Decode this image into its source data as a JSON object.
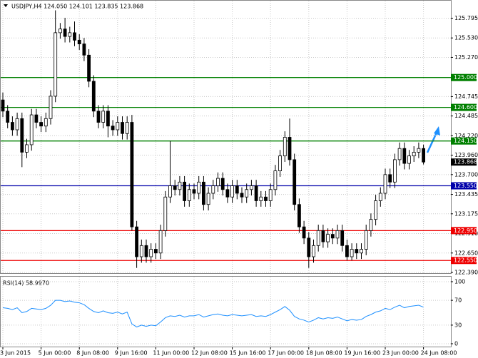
{
  "chart_data": {
    "type": "candlestick",
    "title": "USDJPY,H4  124.050 124.101 123.835 123.868",
    "categories": [
      "3 Jun 2015",
      null,
      null,
      null,
      null,
      null,
      null,
      null,
      "5 Jun 00:00",
      null,
      null,
      null,
      null,
      null,
      null,
      null,
      "8 Jun 08:00",
      null,
      null,
      null,
      null,
      null,
      null,
      null,
      "9 Jun 16:00",
      null,
      null,
      null,
      null,
      null,
      null,
      null,
      "11 Jun 00:00",
      null,
      null,
      null,
      null,
      null,
      null,
      null,
      "12 Jun 08:00",
      null,
      null,
      null,
      null,
      null,
      null,
      null,
      "15 Jun 16:00",
      null,
      null,
      null,
      null,
      null,
      null,
      null,
      "17 Jun 00:00",
      null,
      null,
      null,
      null,
      null,
      null,
      null,
      "18 Jun 08:00",
      null,
      null,
      null,
      null,
      null,
      null,
      null,
      "19 Jun 16:00",
      null,
      null,
      null,
      null,
      null,
      null,
      null,
      "23 Jun 00:00",
      null,
      null,
      null,
      null,
      null,
      null,
      null,
      "24 Jun 08:00"
    ],
    "open": [
      124.7,
      124.55,
      124.4,
      124.3,
      124.45,
      124.0,
      124.1,
      124.5,
      124.4,
      124.35,
      124.45,
      124.75,
      125.6,
      125.65,
      125.55,
      125.6,
      125.5,
      125.45,
      125.3,
      124.95,
      124.55,
      124.4,
      124.55,
      124.35,
      124.3,
      124.4,
      124.25,
      124.4,
      123.0,
      122.6,
      122.75,
      122.6,
      122.7,
      122.65,
      122.95,
      123.4,
      123.55,
      123.5,
      123.6,
      123.35,
      123.5,
      123.45,
      123.6,
      123.3,
      123.45,
      123.55,
      123.65,
      123.5,
      123.4,
      123.55,
      123.45,
      123.4,
      123.5,
      123.55,
      123.35,
      123.4,
      123.35,
      123.5,
      123.75,
      123.95,
      124.2,
      123.9,
      123.3,
      123.0,
      122.85,
      122.6,
      122.75,
      122.95,
      122.8,
      122.9,
      122.85,
      122.95,
      122.75,
      122.6,
      122.7,
      122.65,
      122.7,
      122.95,
      123.1,
      123.35,
      123.45,
      123.7,
      123.6,
      123.9,
      124.05,
      123.85,
      123.95,
      124.0,
      124.05
    ],
    "high": [
      124.8,
      124.63,
      124.48,
      124.53,
      124.53,
      124.18,
      124.58,
      124.58,
      124.48,
      124.53,
      124.83,
      125.9,
      125.73,
      125.8,
      125.68,
      125.75,
      125.58,
      125.53,
      125.38,
      125.03,
      124.63,
      124.63,
      124.63,
      124.43,
      124.48,
      124.48,
      124.48,
      124.5,
      123.08,
      122.83,
      122.83,
      122.78,
      122.78,
      123.03,
      123.48,
      124.15,
      123.63,
      123.68,
      123.68,
      123.58,
      123.58,
      123.68,
      123.68,
      123.53,
      123.63,
      123.73,
      123.73,
      123.58,
      123.63,
      123.63,
      123.53,
      123.58,
      123.63,
      123.63,
      123.48,
      123.48,
      123.58,
      123.83,
      124.03,
      124.28,
      124.45,
      123.98,
      123.38,
      123.08,
      122.93,
      122.83,
      123.03,
      123.03,
      122.98,
      122.98,
      123.03,
      123.03,
      122.83,
      122.78,
      122.78,
      122.78,
      123.03,
      123.18,
      123.43,
      123.53,
      123.78,
      123.78,
      123.98,
      124.13,
      124.13,
      124.03,
      124.08,
      124.13,
      124.101
    ],
    "low": [
      124.47,
      124.32,
      124.22,
      124.22,
      123.8,
      123.92,
      124.02,
      124.32,
      124.27,
      124.27,
      124.37,
      124.67,
      125.52,
      125.47,
      125.47,
      125.42,
      125.37,
      125.22,
      124.87,
      124.47,
      124.32,
      124.32,
      124.2,
      124.22,
      124.22,
      124.17,
      124.17,
      122.95,
      122.45,
      122.52,
      122.52,
      122.52,
      122.57,
      122.57,
      122.87,
      123.32,
      123.42,
      123.42,
      123.27,
      123.27,
      123.37,
      123.37,
      123.22,
      123.22,
      123.37,
      123.47,
      123.42,
      123.32,
      123.32,
      123.37,
      123.32,
      123.32,
      123.42,
      123.27,
      123.27,
      123.27,
      123.27,
      123.42,
      123.67,
      123.87,
      123.82,
      123.22,
      122.92,
      122.77,
      122.45,
      122.52,
      122.67,
      122.72,
      122.72,
      122.77,
      122.77,
      122.67,
      122.55,
      122.55,
      122.57,
      122.57,
      122.62,
      122.87,
      123.02,
      123.27,
      123.37,
      123.52,
      123.52,
      123.82,
      123.77,
      123.77,
      123.87,
      123.92,
      123.835
    ],
    "close": [
      124.55,
      124.4,
      124.3,
      124.45,
      124.0,
      124.1,
      124.5,
      124.4,
      124.35,
      124.45,
      124.75,
      125.6,
      125.65,
      125.55,
      125.6,
      125.5,
      125.45,
      125.3,
      124.95,
      124.55,
      124.4,
      124.55,
      124.35,
      124.3,
      124.4,
      124.25,
      124.4,
      123.0,
      122.6,
      122.75,
      122.6,
      122.7,
      122.65,
      122.95,
      123.4,
      123.55,
      123.5,
      123.6,
      123.35,
      123.5,
      123.45,
      123.6,
      123.3,
      123.45,
      123.55,
      123.65,
      123.5,
      123.4,
      123.55,
      123.45,
      123.4,
      123.5,
      123.55,
      123.35,
      123.4,
      123.35,
      123.5,
      123.75,
      123.95,
      124.2,
      123.9,
      123.3,
      123.0,
      122.85,
      122.6,
      122.75,
      122.95,
      122.8,
      122.9,
      122.85,
      122.95,
      122.75,
      122.6,
      122.7,
      122.65,
      122.7,
      122.95,
      123.1,
      123.35,
      123.45,
      123.7,
      123.6,
      123.9,
      124.05,
      123.85,
      123.95,
      124.0,
      124.05,
      123.868
    ],
    "ylim": [
      122.39,
      126.0
    ],
    "yticks": [
      {
        "value": 125.795,
        "label": "125.795"
      },
      {
        "value": 125.53,
        "label": "125.530"
      },
      {
        "value": 125.27,
        "label": "125.270"
      },
      {
        "value": 124.745,
        "label": "124.745"
      },
      {
        "value": 124.485,
        "label": "124.485"
      },
      {
        "value": 124.22,
        "label": "124.220"
      },
      {
        "value": 123.96,
        "label": "123.960"
      },
      {
        "value": 123.7,
        "label": "123.700"
      },
      {
        "value": 123.435,
        "label": "123.435"
      },
      {
        "value": 123.175,
        "label": "123.175"
      },
      {
        "value": 122.91,
        "label": "122.910"
      },
      {
        "value": 122.65,
        "label": "122.650"
      },
      {
        "value": 122.39,
        "label": "122.390"
      }
    ],
    "grid": true,
    "levels": [
      {
        "value": 125.0,
        "label": "125.000",
        "color": "#008000"
      },
      {
        "value": 124.6,
        "label": "124.600",
        "color": "#008000"
      },
      {
        "value": 124.15,
        "label": "124.150",
        "color": "#008000"
      },
      {
        "value": 123.55,
        "label": "123.550",
        "color": "#0000aa"
      },
      {
        "value": 122.95,
        "label": "122.950",
        "color": "#ee0000"
      },
      {
        "value": 122.55,
        "label": "122.550",
        "color": "#ee0000"
      }
    ],
    "current_price": {
      "value": 123.868,
      "label": "123.868"
    },
    "rsi": {
      "title": "RSI(14) 58.9970",
      "color": "#1e90ff",
      "ylim": [
        0,
        100
      ],
      "yticks": [
        100,
        70,
        30,
        0
      ],
      "values": [
        58,
        57,
        55,
        58,
        50,
        52,
        57,
        56,
        55,
        57,
        62,
        70,
        70,
        68,
        69,
        67,
        66,
        63,
        57,
        52,
        50,
        53,
        50,
        49,
        51,
        48,
        51,
        32,
        27,
        30,
        28,
        30,
        29,
        35,
        42,
        45,
        44,
        46,
        43,
        45,
        45,
        47,
        43,
        45,
        47,
        48,
        46,
        45,
        47,
        46,
        45,
        46,
        47,
        44,
        45,
        44,
        47,
        51,
        55,
        60,
        54,
        44,
        40,
        38,
        35,
        38,
        42,
        40,
        42,
        41,
        43,
        40,
        37,
        39,
        38,
        39,
        44,
        47,
        51,
        53,
        57,
        55,
        59,
        62,
        58,
        60,
        61,
        62,
        58.997
      ]
    }
  }
}
